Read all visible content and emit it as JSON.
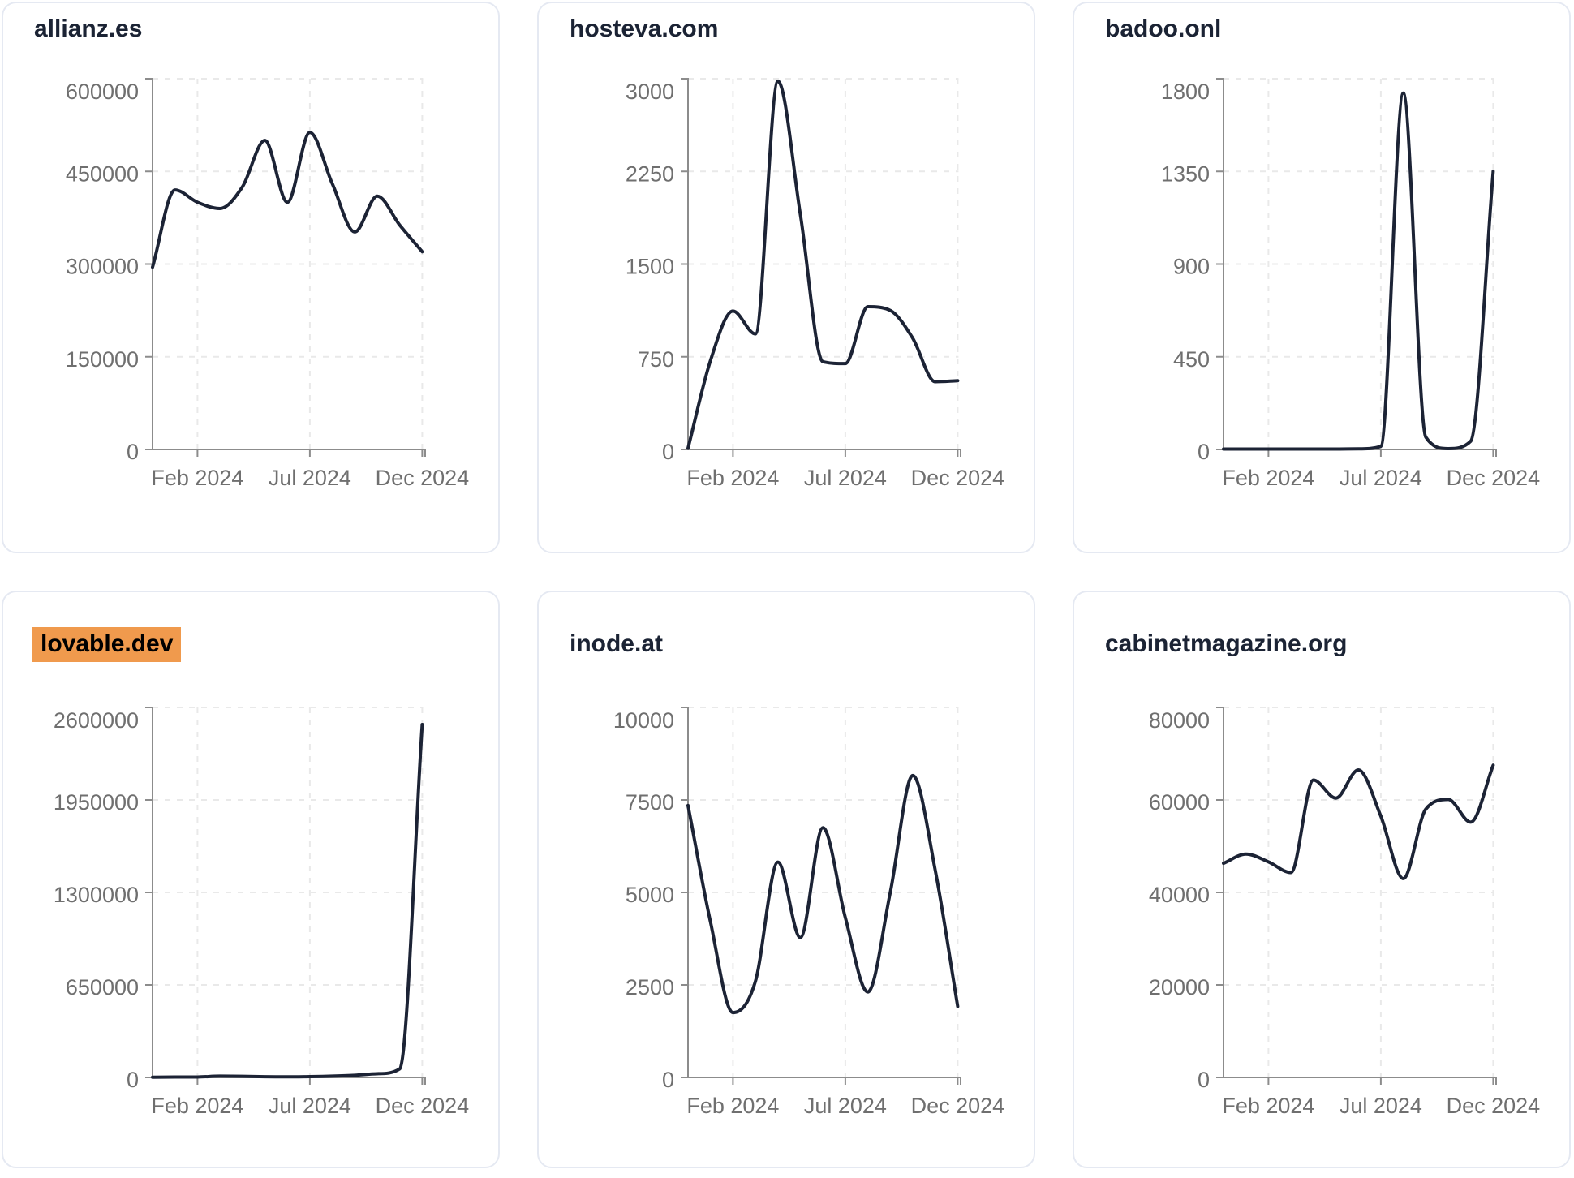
{
  "page": {
    "background": "#FFFFFF"
  },
  "colors": {
    "series_line": "#1C2335",
    "axis": "#8C8C8C",
    "tick_label": "#6F6F6F",
    "gridline": "#E9E9E9",
    "title": "#1B2334",
    "highlight_bg": "#F09A4D",
    "highlight_text": "#000000",
    "card_border": "#E5E9F2",
    "background": "#FFFFFF"
  },
  "chart_data": [
    {
      "type": "line",
      "title": "allianz.es",
      "title_highlighted": false,
      "x_tick_labels": [
        "Feb 2024",
        "Jul 2024",
        "Dec 2024"
      ],
      "x_tick_indices": [
        2,
        7,
        12
      ],
      "points": 13,
      "y_ticks": [
        0,
        150000,
        300000,
        450000,
        600000
      ],
      "ylim": [
        0,
        600000
      ],
      "grid": true,
      "values": [
        295000,
        420000,
        400000,
        390000,
        425000,
        500000,
        400000,
        513000,
        430000,
        352000,
        410000,
        363000,
        320000
      ]
    },
    {
      "type": "line",
      "title": "hosteva.com",
      "title_highlighted": false,
      "x_tick_labels": [
        "Feb 2024",
        "Jul 2024",
        "Dec 2024"
      ],
      "x_tick_indices": [
        2,
        7,
        12
      ],
      "points": 13,
      "y_ticks": [
        0,
        750,
        1500,
        2250,
        3000
      ],
      "ylim": [
        0,
        3000
      ],
      "grid": true,
      "values": [
        10,
        720,
        1120,
        935,
        2980,
        1900,
        710,
        695,
        1155,
        1125,
        900,
        548,
        556
      ]
    },
    {
      "type": "line",
      "title": "badoo.onl",
      "title_highlighted": false,
      "x_tick_labels": [
        "Feb 2024",
        "Jul 2024",
        "Dec 2024"
      ],
      "x_tick_indices": [
        2,
        7,
        12
      ],
      "points": 13,
      "y_ticks": [
        0,
        450,
        900,
        1350,
        1800
      ],
      "ylim": [
        0,
        1800
      ],
      "grid": true,
      "values": [
        2,
        2,
        2,
        2,
        2,
        2,
        3,
        15,
        1730,
        60,
        4,
        40,
        1350
      ]
    },
    {
      "type": "line",
      "title": "lovable.dev",
      "title_highlighted": true,
      "x_tick_labels": [
        "Feb 2024",
        "Jul 2024",
        "Dec 2024"
      ],
      "x_tick_indices": [
        2,
        7,
        12
      ],
      "points": 13,
      "y_ticks": [
        0,
        650000,
        1300000,
        1950000,
        2600000
      ],
      "ylim": [
        0,
        2600000
      ],
      "grid": true,
      "values": [
        1500,
        2500,
        3000,
        9000,
        8000,
        5000,
        4000,
        6000,
        9000,
        15000,
        26000,
        60000,
        2480000
      ]
    },
    {
      "type": "line",
      "title": "inode.at",
      "title_highlighted": false,
      "x_tick_labels": [
        "Feb 2024",
        "Jul 2024",
        "Dec 2024"
      ],
      "x_tick_indices": [
        2,
        7,
        12
      ],
      "points": 13,
      "y_ticks": [
        0,
        2500,
        5000,
        7500,
        10000
      ],
      "ylim": [
        0,
        10000
      ],
      "grid": true,
      "values": [
        7350,
        4200,
        1750,
        2600,
        5820,
        3780,
        6750,
        4320,
        2310,
        5000,
        8160,
        5600,
        1920
      ]
    },
    {
      "type": "line",
      "title": "cabinetmagazine.org",
      "title_highlighted": false,
      "x_tick_labels": [
        "Feb 2024",
        "Jul 2024",
        "Dec 2024"
      ],
      "x_tick_indices": [
        2,
        7,
        12
      ],
      "points": 13,
      "y_ticks": [
        0,
        20000,
        40000,
        60000,
        80000
      ],
      "ylim": [
        0,
        80000
      ],
      "grid": true,
      "values": [
        46300,
        48300,
        46600,
        44300,
        64300,
        60400,
        66500,
        56500,
        43000,
        58000,
        60100,
        55200,
        67500
      ]
    }
  ]
}
